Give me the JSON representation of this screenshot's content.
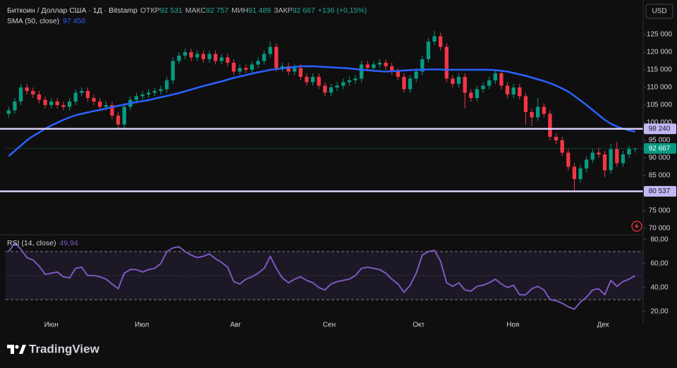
{
  "header": {
    "symbol": "Биткоин / Доллар США · 1Д · Bitstamp",
    "open_label": "ОТКР",
    "open": "92 531",
    "high_label": "МАКС",
    "high": "92 757",
    "low_label": "МИН",
    "low": "91 489",
    "close_label": "ЗАКР",
    "close": "92 667",
    "change": "+136 (+0,15%)",
    "currency": "USD"
  },
  "footer": {
    "brand": "TradingView"
  },
  "chart_data": [
    {
      "type": "candlestick",
      "title": "Биткоин / Доллар США · 1Д · Bitstamp",
      "up_color": "#089981",
      "down_color": "#f23645",
      "open": [
        102500,
        103500,
        106000,
        110000,
        109000,
        108000,
        106500,
        105000,
        106000,
        105000,
        104500,
        106000,
        108500,
        109000,
        107000,
        106000,
        104500,
        105000,
        102000,
        99500,
        104500,
        106500,
        107500,
        108000,
        108500,
        109000,
        109500,
        112000,
        117500,
        119000,
        120000,
        118500,
        119500,
        118000,
        119500,
        117500,
        118500,
        117000,
        114500,
        115500,
        115000,
        116500,
        117500,
        119500,
        121500,
        115500,
        116000,
        114500,
        115500,
        113000,
        111500,
        113000,
        110500,
        108500,
        110000,
        110500,
        111500,
        112000,
        112500,
        116500,
        115500,
        116500,
        117000,
        116000,
        114500,
        113000,
        109500,
        112500,
        114500,
        118000,
        123000,
        124500,
        121500,
        112500,
        111000,
        113000,
        108500,
        107000,
        109500,
        110500,
        112000,
        114000,
        110500,
        108000,
        110000,
        107500,
        103000,
        101500,
        104500,
        102500,
        96000,
        95000,
        91500,
        87500,
        84000,
        87000,
        89500,
        91500,
        91000,
        86500,
        92500,
        88500,
        91000,
        92531
      ],
      "high": [
        104500,
        107000,
        111000,
        111000,
        110000,
        109000,
        107500,
        107000,
        107000,
        106000,
        107000,
        109500,
        110000,
        110000,
        108000,
        107000,
        106000,
        106000,
        103000,
        105500,
        107500,
        108500,
        109000,
        109500,
        110000,
        110500,
        113000,
        118500,
        120000,
        121000,
        121000,
        120500,
        120500,
        120500,
        120500,
        119500,
        119500,
        118000,
        116500,
        116500,
        117500,
        118500,
        120500,
        123000,
        122500,
        117000,
        117000,
        116500,
        116500,
        114000,
        114000,
        114000,
        111500,
        111000,
        111500,
        112500,
        113000,
        113500,
        117500,
        117500,
        117500,
        118000,
        118000,
        117000,
        115500,
        114000,
        113500,
        115500,
        119000,
        124000,
        126000,
        125500,
        122500,
        113500,
        114000,
        114000,
        109500,
        110500,
        111500,
        113000,
        115000,
        115000,
        111500,
        111000,
        111000,
        108500,
        104000,
        107000,
        105500,
        103500,
        97000,
        96000,
        92500,
        88500,
        88000,
        90500,
        92500,
        93000,
        92000,
        94000,
        94500,
        92000,
        93500,
        92757
      ],
      "low": [
        101500,
        102500,
        105000,
        108000,
        107000,
        105500,
        104000,
        104000,
        104000,
        103500,
        103500,
        105000,
        107500,
        106000,
        105000,
        103500,
        103500,
        101000,
        98500,
        98500,
        103500,
        105500,
        106500,
        107000,
        107500,
        108000,
        108500,
        111000,
        116500,
        118000,
        117500,
        117500,
        117000,
        117000,
        116500,
        116500,
        116000,
        113500,
        113500,
        114000,
        114000,
        115500,
        116500,
        118500,
        114500,
        114500,
        113500,
        113500,
        112000,
        110500,
        110500,
        109500,
        107500,
        107500,
        109000,
        109500,
        110500,
        111000,
        111500,
        114500,
        114500,
        115500,
        115000,
        113500,
        112000,
        108500,
        108500,
        111500,
        113500,
        117000,
        122000,
        120500,
        111500,
        110000,
        110000,
        104000,
        106000,
        106000,
        108500,
        109500,
        111000,
        109500,
        107000,
        107000,
        106500,
        99500,
        99000,
        100500,
        101500,
        95000,
        94000,
        90500,
        86500,
        80537,
        83000,
        86000,
        88500,
        90000,
        84500,
        85500,
        87500,
        87500,
        90000,
        91489
      ],
      "close": [
        103500,
        106000,
        110000,
        109000,
        108000,
        106500,
        105000,
        106000,
        105000,
        104500,
        106000,
        108500,
        109000,
        107000,
        106000,
        104500,
        105000,
        102000,
        99500,
        104500,
        106500,
        107500,
        108000,
        108500,
        109000,
        109500,
        112000,
        117500,
        119000,
        120000,
        118500,
        119500,
        118000,
        119500,
        117500,
        118500,
        117000,
        114500,
        115500,
        115000,
        116500,
        117500,
        119500,
        121500,
        115500,
        116000,
        114500,
        115500,
        113000,
        111500,
        113000,
        110500,
        108500,
        110000,
        110500,
        111500,
        112000,
        112500,
        116500,
        115500,
        116500,
        117000,
        116000,
        114500,
        113000,
        109500,
        112500,
        114500,
        118000,
        123000,
        124500,
        121500,
        112500,
        111000,
        113000,
        108500,
        107000,
        109500,
        110500,
        112000,
        114000,
        110500,
        108000,
        110000,
        107500,
        103000,
        101500,
        104500,
        102500,
        96000,
        95000,
        91500,
        87500,
        84000,
        87000,
        89500,
        91500,
        91000,
        86500,
        92500,
        88500,
        91000,
        92531,
        92667
      ],
      "last_price": {
        "value": 92667,
        "label": "92 667"
      },
      "overlays": [
        {
          "name": "SMA (50, close)",
          "value_label": "97 450",
          "color": "#2962ff",
          "values": [
            90500,
            92000,
            93500,
            95000,
            96200,
            97200,
            98300,
            99200,
            100000,
            100800,
            101500,
            102100,
            102500,
            102900,
            103300,
            103600,
            104000,
            104400,
            104800,
            105100,
            105500,
            105800,
            106100,
            106400,
            106800,
            107200,
            107600,
            108000,
            108400,
            108900,
            109400,
            109900,
            110400,
            110800,
            111300,
            111700,
            112200,
            112700,
            113100,
            113500,
            113900,
            114300,
            114600,
            115000,
            115200,
            115400,
            115600,
            115800,
            116000,
            116000,
            116000,
            115900,
            115800,
            115700,
            115600,
            115500,
            115400,
            115200,
            115000,
            114900,
            114700,
            114600,
            114500,
            114600,
            114700,
            114800,
            114900,
            115000,
            115000,
            115100,
            115100,
            115100,
            115000,
            115000,
            115000,
            115000,
            115000,
            115000,
            115000,
            115000,
            114900,
            114700,
            114500,
            114100,
            113700,
            113300,
            112800,
            112300,
            111800,
            111200,
            110500,
            109700,
            108800,
            107600,
            106300,
            105000,
            103600,
            102200,
            100800,
            99700,
            98900,
            98300,
            97800,
            97450
          ]
        }
      ],
      "levels": [
        {
          "value": 98240,
          "label": "98 240"
        },
        {
          "value": 80537,
          "label": "80 537"
        }
      ],
      "level_color": "#c4b8f4",
      "xlim": [
        0,
        104
      ],
      "xticks": [
        {
          "value": 7.5,
          "label": "Июн"
        },
        {
          "value": 22.4,
          "label": "Июл"
        },
        {
          "value": 37.8,
          "label": "Авг"
        },
        {
          "value": 53.2,
          "label": "Сен"
        },
        {
          "value": 67.9,
          "label": "Окт"
        },
        {
          "value": 83.4,
          "label": "Ноя"
        },
        {
          "value": 98.2,
          "label": "Дек"
        }
      ],
      "ylim": [
        68400,
        133200
      ],
      "yticks": [
        {
          "value": 70000,
          "label": "70 000"
        },
        {
          "value": 75000,
          "label": "75 000"
        },
        {
          "value": 80000,
          "label": "80 000"
        },
        {
          "value": 85000,
          "label": "85 000"
        },
        {
          "value": 90000,
          "label": "90 000"
        },
        {
          "value": 95000,
          "label": "95 000"
        },
        {
          "value": 100000,
          "label": "100 000"
        },
        {
          "value": 105000,
          "label": "105 000"
        },
        {
          "value": 110000,
          "label": "110 000"
        },
        {
          "value": 115000,
          "label": "115 000"
        },
        {
          "value": 120000,
          "label": "120 000"
        },
        {
          "value": 125000,
          "label": "125 000"
        }
      ]
    },
    {
      "type": "line",
      "title": "RSI (14, close)",
      "value_label": "49,94",
      "color": "#7e57c2",
      "values": [
        70,
        77,
        72,
        65,
        63,
        58,
        51,
        52,
        53,
        49,
        48,
        56,
        57,
        50,
        50,
        49,
        47,
        43,
        39,
        52,
        55,
        55,
        53,
        55,
        56,
        60,
        70,
        73,
        74,
        70,
        67,
        65,
        66,
        68,
        64,
        61,
        57,
        45,
        43,
        47,
        49,
        52,
        56,
        66,
        56,
        48,
        44,
        47,
        49,
        46,
        44,
        40,
        38,
        43,
        45,
        46,
        47,
        50,
        56,
        57,
        56,
        55,
        52,
        47,
        43,
        36,
        42,
        52,
        67,
        70,
        71,
        62,
        44,
        41,
        44,
        38,
        37,
        41,
        42,
        44,
        47,
        43,
        40,
        42,
        34,
        34,
        39,
        41,
        38,
        30,
        29,
        27,
        24,
        22,
        28,
        32,
        38,
        39,
        34,
        46,
        41,
        45,
        47,
        49.94
      ],
      "bands": [
        70,
        50,
        30
      ],
      "xlim": [
        0,
        104
      ],
      "ylim": [
        10,
        84
      ],
      "yticks": [
        {
          "value": 20,
          "label": "20,00"
        },
        {
          "value": 40,
          "label": "40,00"
        },
        {
          "value": 60,
          "label": "60,00"
        },
        {
          "value": 80,
          "label": "80,00"
        }
      ]
    }
  ]
}
